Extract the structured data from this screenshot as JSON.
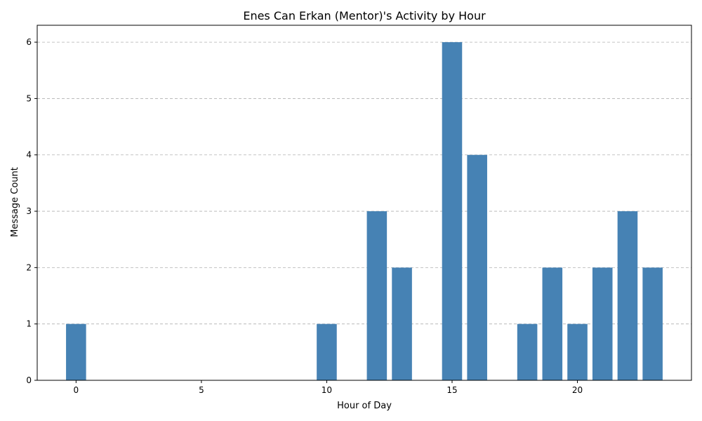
{
  "chart_data": {
    "type": "bar",
    "title": "Enes Can Erkan (Mentor)'s Activity by Hour",
    "xlabel": "Hour of Day",
    "ylabel": "Message Count",
    "x": [
      0,
      10,
      12,
      13,
      15,
      16,
      18,
      19,
      20,
      21,
      22,
      23
    ],
    "values": [
      1,
      1,
      3,
      2,
      6,
      4,
      1,
      2,
      1,
      2,
      3,
      2
    ],
    "xticks": [
      0,
      5,
      10,
      15,
      20
    ],
    "yticks": [
      0,
      1,
      2,
      3,
      4,
      5,
      6
    ],
    "xlim": [
      -1.55,
      24.55
    ],
    "ylim": [
      0,
      6.3
    ],
    "grid": "y-dashed",
    "bar_color": "#4682b4"
  }
}
